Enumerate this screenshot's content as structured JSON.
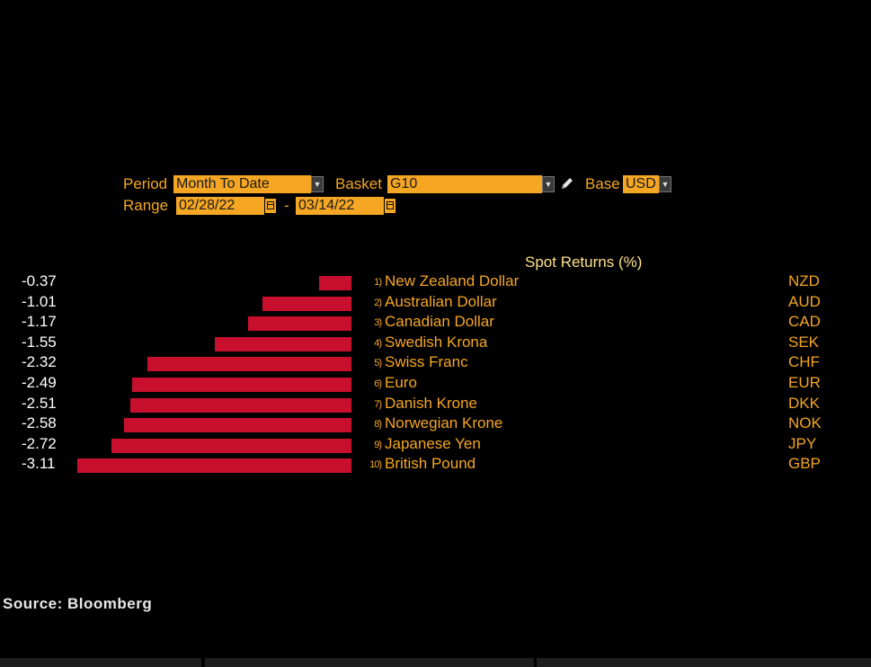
{
  "controls": {
    "period_label": "Period",
    "period_value": "Month To Date",
    "basket_label": "Basket",
    "basket_value": "G10",
    "base_label": "Base",
    "base_value": "USD",
    "range_label": "Range",
    "range_start": "02/28/22",
    "range_separator": "-",
    "range_end": "03/14/22"
  },
  "chart_data": {
    "type": "bar",
    "orientation": "horizontal",
    "title": "Spot Returns (%)",
    "bar_color": "#c8102e",
    "rows": [
      {
        "rank": "1)",
        "name": "New Zealand Dollar",
        "code": "NZD",
        "value": -0.37,
        "label": "-0.37"
      },
      {
        "rank": "2)",
        "name": "Australian Dollar",
        "code": "AUD",
        "value": -1.01,
        "label": "-1.01"
      },
      {
        "rank": "3)",
        "name": "Canadian Dollar",
        "code": "CAD",
        "value": -1.17,
        "label": "-1.17"
      },
      {
        "rank": "4)",
        "name": "Swedish Krona",
        "code": "SEK",
        "value": -1.55,
        "label": "-1.55"
      },
      {
        "rank": "5)",
        "name": "Swiss Franc",
        "code": "CHF",
        "value": -2.32,
        "label": "-2.32"
      },
      {
        "rank": "6)",
        "name": "Euro",
        "code": "EUR",
        "value": -2.49,
        "label": "-2.49"
      },
      {
        "rank": "7)",
        "name": "Danish Krone",
        "code": "DKK",
        "value": -2.51,
        "label": "-2.51"
      },
      {
        "rank": "8)",
        "name": "Norwegian Krone",
        "code": "NOK",
        "value": -2.58,
        "label": "-2.58"
      },
      {
        "rank": "9)",
        "name": "Japanese Yen",
        "code": "JPY",
        "value": -2.72,
        "label": "-2.72"
      },
      {
        "rank": "10)",
        "name": "British Pound",
        "code": "GBP",
        "value": -3.11,
        "label": "-3.11"
      }
    ]
  },
  "footer": {
    "source": "Source: Bloomberg"
  }
}
